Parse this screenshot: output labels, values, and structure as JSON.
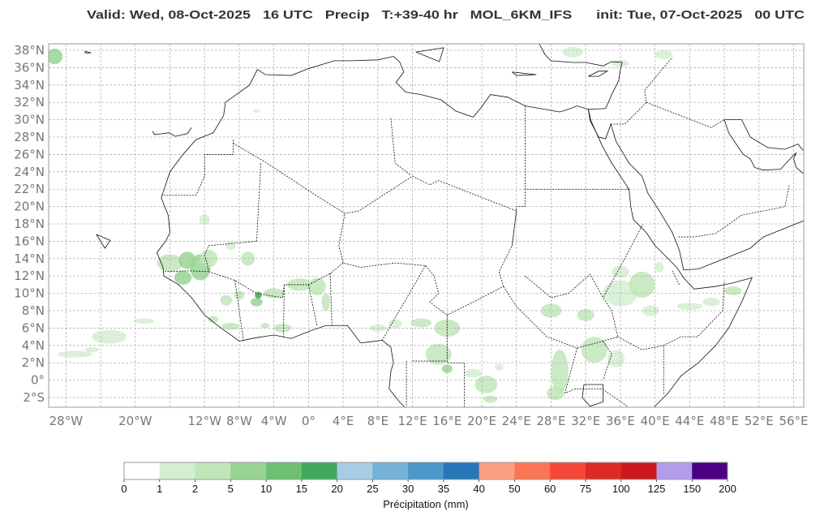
{
  "title": "Valid: Wed, 08-Oct-2025   16 UTC   Precip   T:+39-40 hr   MOL_6KM_IFS      init: Tue, 07-Oct-2025   00 UTC",
  "map": {
    "extent": {
      "lon": [
        -30,
        57
      ],
      "lat": [
        -3,
        38.75
      ]
    },
    "grid": true,
    "lat_ticks": [
      38,
      36,
      34,
      32,
      30,
      28,
      26,
      24,
      22,
      20,
      18,
      16,
      14,
      12,
      10,
      8,
      6,
      4,
      2,
      0,
      -2
    ],
    "lat_labels": [
      "38°N",
      "36°N",
      "34°N",
      "32°N",
      "30°N",
      "28°N",
      "26°N",
      "24°N",
      "22°N",
      "20°N",
      "18°N",
      "16°N",
      "14°N",
      "12°N",
      "10°N",
      "8°N",
      "6°N",
      "4°N",
      "2°N",
      "0°",
      "2°S"
    ],
    "lon_ticks": [
      -28,
      -20,
      -12,
      -8,
      -4,
      0,
      4,
      8,
      12,
      16,
      20,
      24,
      28,
      32,
      36,
      40,
      44,
      48,
      52,
      56
    ],
    "lon_labels": [
      "28°W",
      "20°W",
      "12°W",
      "8°W",
      "4°W",
      "0°",
      "4°E",
      "8°E",
      "12°E",
      "16°E",
      "20°E",
      "24°E",
      "28°E",
      "32°E",
      "36°E",
      "40°E",
      "44°E",
      "48°E",
      "52°E",
      "56°E"
    ]
  },
  "colorbar": {
    "label": "Précipitation (mm)",
    "ticks": [
      "0",
      "1",
      "2",
      "5",
      "10",
      "15",
      "20",
      "25",
      "30",
      "35",
      "40",
      "50",
      "60",
      "75",
      "100",
      "125",
      "150",
      "200"
    ],
    "colors": [
      "#ffffff",
      "#d3efd0",
      "#c1e6b9",
      "#98d594",
      "#6ec173",
      "#3fa95c",
      "#a7cde5",
      "#74b2d8",
      "#4b98c9",
      "#2676b8",
      "#fc9f81",
      "#fb7555",
      "#f4493a",
      "#dd2a25",
      "#cc1a1c",
      "#b39ceb",
      "#4b0082"
    ]
  }
}
